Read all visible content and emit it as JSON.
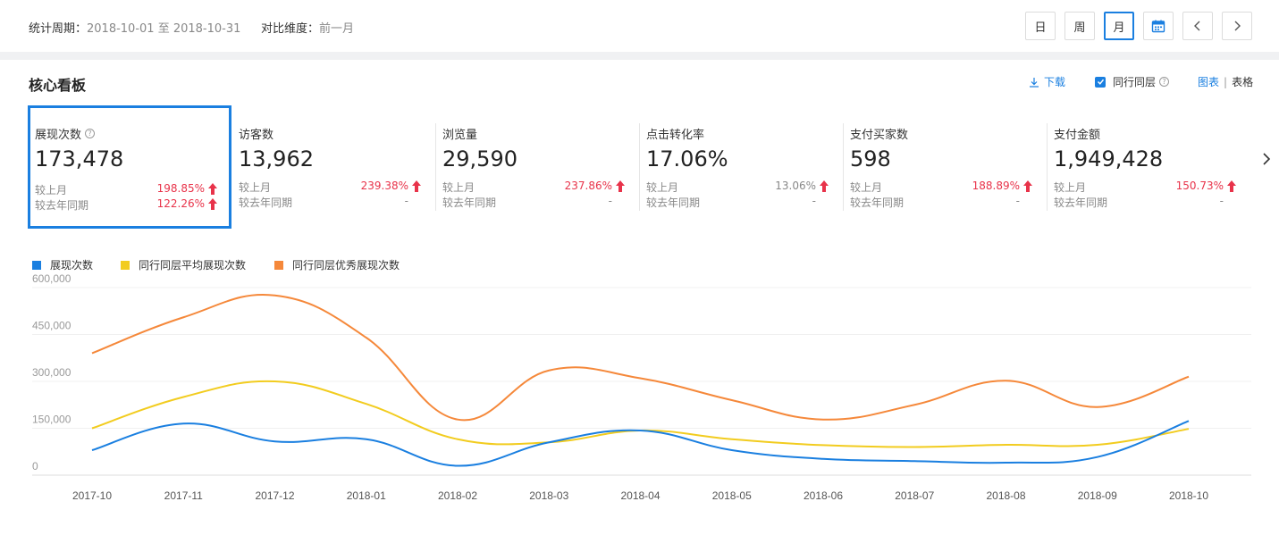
{
  "header": {
    "period_label": "统计周期：",
    "period_value": "2018-10-01 至 2018-10-31",
    "compare_label": "对比维度：",
    "compare_value": "前一月",
    "buttons": {
      "day": "日",
      "week": "周",
      "month": "月"
    },
    "active_button": "月"
  },
  "panel": {
    "title": "核心看板",
    "download": "下载",
    "peer_label": "同行同层",
    "peer_checked": true,
    "view_chart": "图表",
    "view_sep": "|",
    "view_table": "表格"
  },
  "metrics": [
    {
      "title": "展现次数",
      "help": "?",
      "value": "173,478",
      "mom_label": "较上月",
      "mom": "198.85%",
      "mom_trend": "up",
      "yoy_label": "较去年同期",
      "yoy": "122.26%",
      "yoy_trend": "up"
    },
    {
      "title": "访客数",
      "value": "13,962",
      "mom_label": "较上月",
      "mom": "239.38%",
      "mom_trend": "up",
      "yoy_label": "较去年同期",
      "yoy": "-"
    },
    {
      "title": "浏览量",
      "value": "29,590",
      "mom_label": "较上月",
      "mom": "237.86%",
      "mom_trend": "up",
      "yoy_label": "较去年同期",
      "yoy": "-"
    },
    {
      "title": "点击转化率",
      "value": "17.06%",
      "mom_label": "较上月",
      "mom": "13.06%",
      "mom_trend": "up",
      "yoy_label": "较去年同期",
      "yoy": "-"
    },
    {
      "title": "支付买家数",
      "value": "598",
      "mom_label": "较上月",
      "mom": "188.89%",
      "mom_trend": "up",
      "yoy_label": "较去年同期",
      "yoy": "-"
    },
    {
      "title": "支付金额",
      "value": "1,949,428",
      "mom_label": "较上月",
      "mom": "150.73%",
      "mom_trend": "up",
      "yoy_label": "较去年同期",
      "yoy": "-"
    }
  ],
  "colors": {
    "accent": "#1a7fe0",
    "up": "#e8334a",
    "series_blue": "#1a7fe0",
    "series_yellow": "#f2cc1f",
    "series_orange": "#f5883a"
  },
  "chart_data": {
    "type": "line",
    "categories": [
      "2017-10",
      "2017-11",
      "2017-12",
      "2018-01",
      "2018-02",
      "2018-03",
      "2018-04",
      "2018-05",
      "2018-06",
      "2018-07",
      "2018-08",
      "2018-09",
      "2018-10"
    ],
    "series": [
      {
        "name": "展现次数",
        "color": "#1a7fe0",
        "values": [
          80000,
          165000,
          108000,
          115000,
          30000,
          105000,
          143000,
          80000,
          52000,
          45000,
          40000,
          58000,
          173478
        ]
      },
      {
        "name": "同行同层平均展现次数",
        "color": "#f2cc1f",
        "values": [
          150000,
          250000,
          300000,
          228000,
          115000,
          105000,
          143000,
          115000,
          96000,
          90000,
          97000,
          97000,
          148000
        ]
      },
      {
        "name": "同行同层优秀展现次数",
        "color": "#f5883a",
        "values": [
          390000,
          505000,
          575000,
          440000,
          178000,
          335000,
          310000,
          240000,
          178000,
          225000,
          302000,
          218000,
          315000
        ]
      }
    ],
    "ylim": [
      0,
      600000
    ],
    "yticks": [
      "600,000",
      "450,000",
      "300,000",
      "150,000",
      "0"
    ],
    "ytick_values": [
      600000,
      450000,
      300000,
      150000,
      0
    ],
    "grid": true,
    "legend": "top-left"
  }
}
